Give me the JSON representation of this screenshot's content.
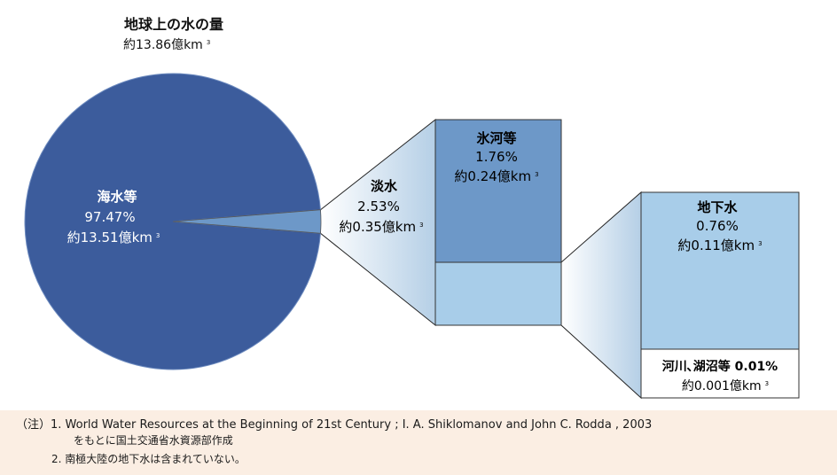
{
  "chart_data": {
    "type": "pie",
    "title": "地球上の水の量",
    "subtitle": "約13.86億km",
    "subtitle_sup": "3",
    "unit_sup": "3",
    "total": 13.86,
    "slices": [
      {
        "key": "seawater",
        "label": "海水等",
        "percent": 97.47,
        "percent_text": "97.47%",
        "amount_text": "約13.51億km",
        "color": "#3c5c9c"
      },
      {
        "key": "freshwater",
        "label": "淡水",
        "percent": 2.53,
        "percent_text": "2.53%",
        "amount_text": "約0.35億km",
        "color": "#6d98c8"
      }
    ],
    "freshwater_breakdown": [
      {
        "key": "glaciers",
        "label": "氷河等",
        "percent": 1.76,
        "percent_text": "1.76%",
        "amount_text": "約0.24億km",
        "color": "#6d98c8"
      },
      {
        "key": "other",
        "label": "",
        "percent": 0.77,
        "color": "#a8cde9"
      }
    ],
    "other_breakdown": [
      {
        "key": "groundwater",
        "label": "地下水",
        "percent": 0.76,
        "percent_text": "0.76%",
        "amount_text": "約0.11億km",
        "color": "#a8cde9"
      },
      {
        "key": "rivers_lakes",
        "label": "河川､湖沼等 0.01%",
        "percent": 0.01,
        "amount_text": "約0.001億km",
        "color": "#ffffff"
      }
    ],
    "colors": {
      "connector_edge": "#ffffff",
      "connector_mid": "#b5cfe6",
      "box_border": "#1a1a1a"
    }
  },
  "footer": {
    "note1": "（注）1. World Water Resources at the Beginning of 21st Century ; I. A. Shiklomanov and John C. Rodda , 2003",
    "note1_cont": "をもとに国土交通省水資源部作成",
    "note2": "2. 南極大陸の地下水は含まれていない。"
  }
}
